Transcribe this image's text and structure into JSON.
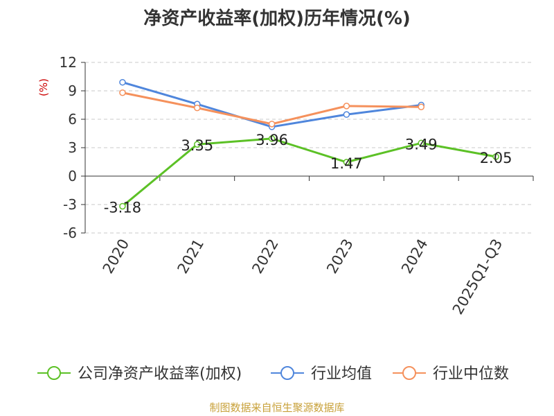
{
  "chart_data": {
    "type": "line",
    "title": "净资产收益率(加权)历年情况(%)",
    "ylabel": "(%)",
    "categories": [
      "2020",
      "2021",
      "2022",
      "2023",
      "2024",
      "2025Q1-Q3"
    ],
    "ylim": [
      -6,
      12
    ],
    "yticks": [
      "12",
      "9",
      "6",
      "3",
      "0",
      "-3",
      "-6"
    ],
    "grid": true,
    "legend_position": "bottom",
    "series": [
      {
        "name": "公司净资产收益率(加权)",
        "color": "#5cc126",
        "values": [
          -3.18,
          3.35,
          3.96,
          1.47,
          3.49,
          2.05
        ],
        "labels": [
          "-3.18",
          "3.35",
          "3.96",
          "1.47",
          "3.49",
          "2.05"
        ]
      },
      {
        "name": "行业均值",
        "color": "#4f86dc",
        "values": [
          9.9,
          7.6,
          5.2,
          6.5,
          7.5,
          null
        ]
      },
      {
        "name": "行业中位数",
        "color": "#f5915c",
        "values": [
          8.8,
          7.2,
          5.5,
          7.4,
          7.3,
          null
        ]
      }
    ]
  },
  "source": "制图数据来自恒生聚源数据库"
}
